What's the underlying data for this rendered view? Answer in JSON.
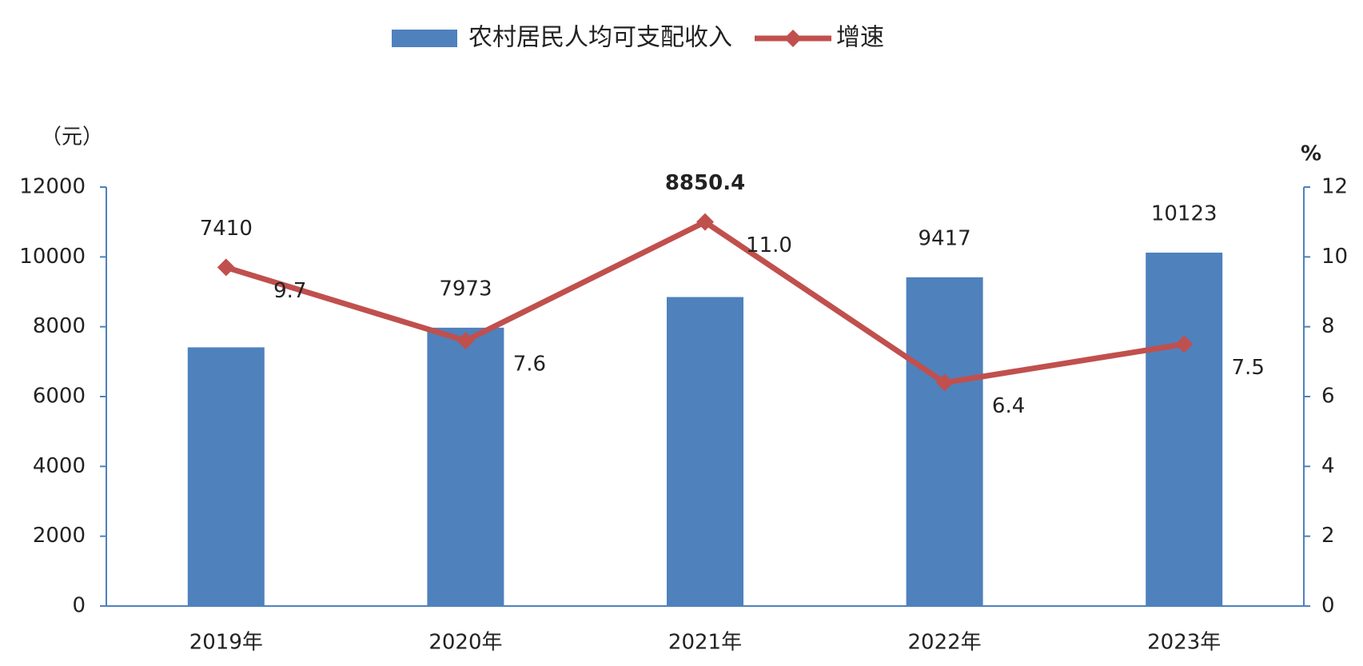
{
  "chart_data": {
    "type": "bar",
    "categories": [
      "2019年",
      "2020年",
      "2021年",
      "2022年",
      "2023年"
    ],
    "series": [
      {
        "name": "农村居民人均可支配收入",
        "color": "#4f81bd",
        "values": [
          7410,
          7973,
          8850.4,
          9417,
          10123
        ]
      },
      {
        "name": "增速",
        "type": "line",
        "axis": "y2",
        "color": "#c0504d",
        "values": [
          9.7,
          7.6,
          11,
          6.4,
          7.5
        ],
        "value_labels": [
          "9.7",
          "7.6",
          "11.0",
          "6.4",
          "7.5"
        ]
      }
    ],
    "ylabel": "（元）",
    "y2label": "%",
    "ylim": [
      0,
      12000
    ],
    "yticks": [
      0,
      2000,
      4000,
      6000,
      8000,
      10000,
      12000
    ],
    "y2lim": [
      0,
      12
    ],
    "y2ticks": [
      0,
      2,
      4,
      6,
      8,
      10,
      12
    ],
    "grid": false,
    "legend": "top"
  }
}
